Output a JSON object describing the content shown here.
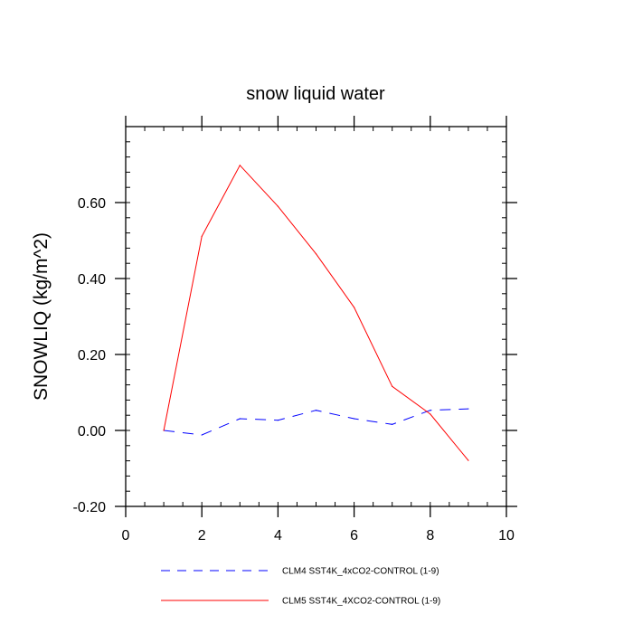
{
  "chart_data": {
    "type": "line",
    "title": "snow liquid water",
    "xlabel": "",
    "ylabel": "SNOWLIQ  (kg/m^2)",
    "xlim": [
      0,
      10
    ],
    "ylim": [
      -0.2,
      0.8
    ],
    "xticks": [
      {
        "value": 0,
        "label": "0"
      },
      {
        "value": 2,
        "label": "2"
      },
      {
        "value": 4,
        "label": "4"
      },
      {
        "value": 6,
        "label": "6"
      },
      {
        "value": 8,
        "label": "8"
      },
      {
        "value": 10,
        "label": "10"
      }
    ],
    "yticks": [
      {
        "value": -0.2,
        "label": "-0.20"
      },
      {
        "value": 0.0,
        "label": "0.00"
      },
      {
        "value": 0.2,
        "label": "0.20"
      },
      {
        "value": 0.4,
        "label": "0.40"
      },
      {
        "value": 0.6,
        "label": "0.60"
      }
    ],
    "grid": false,
    "legend_position": "bottom",
    "x": [
      1,
      2,
      3,
      4,
      5,
      6,
      7,
      8,
      9
    ],
    "series": [
      {
        "name": "CLM4 SST4K_4xCO2-CONTROL (1-9)",
        "color": "#0000ff",
        "dash": "dashed",
        "values": [
          0.0,
          -0.012,
          0.031,
          0.027,
          0.053,
          0.031,
          0.016,
          0.053,
          0.057
        ]
      },
      {
        "name": "CLM5 SST4K_4XCO2-CONTROL (1-9)",
        "color": "#ff0000",
        "dash": "solid",
        "values": [
          0.0,
          0.511,
          0.698,
          0.59,
          0.465,
          0.324,
          0.116,
          0.043,
          -0.079
        ]
      }
    ]
  }
}
